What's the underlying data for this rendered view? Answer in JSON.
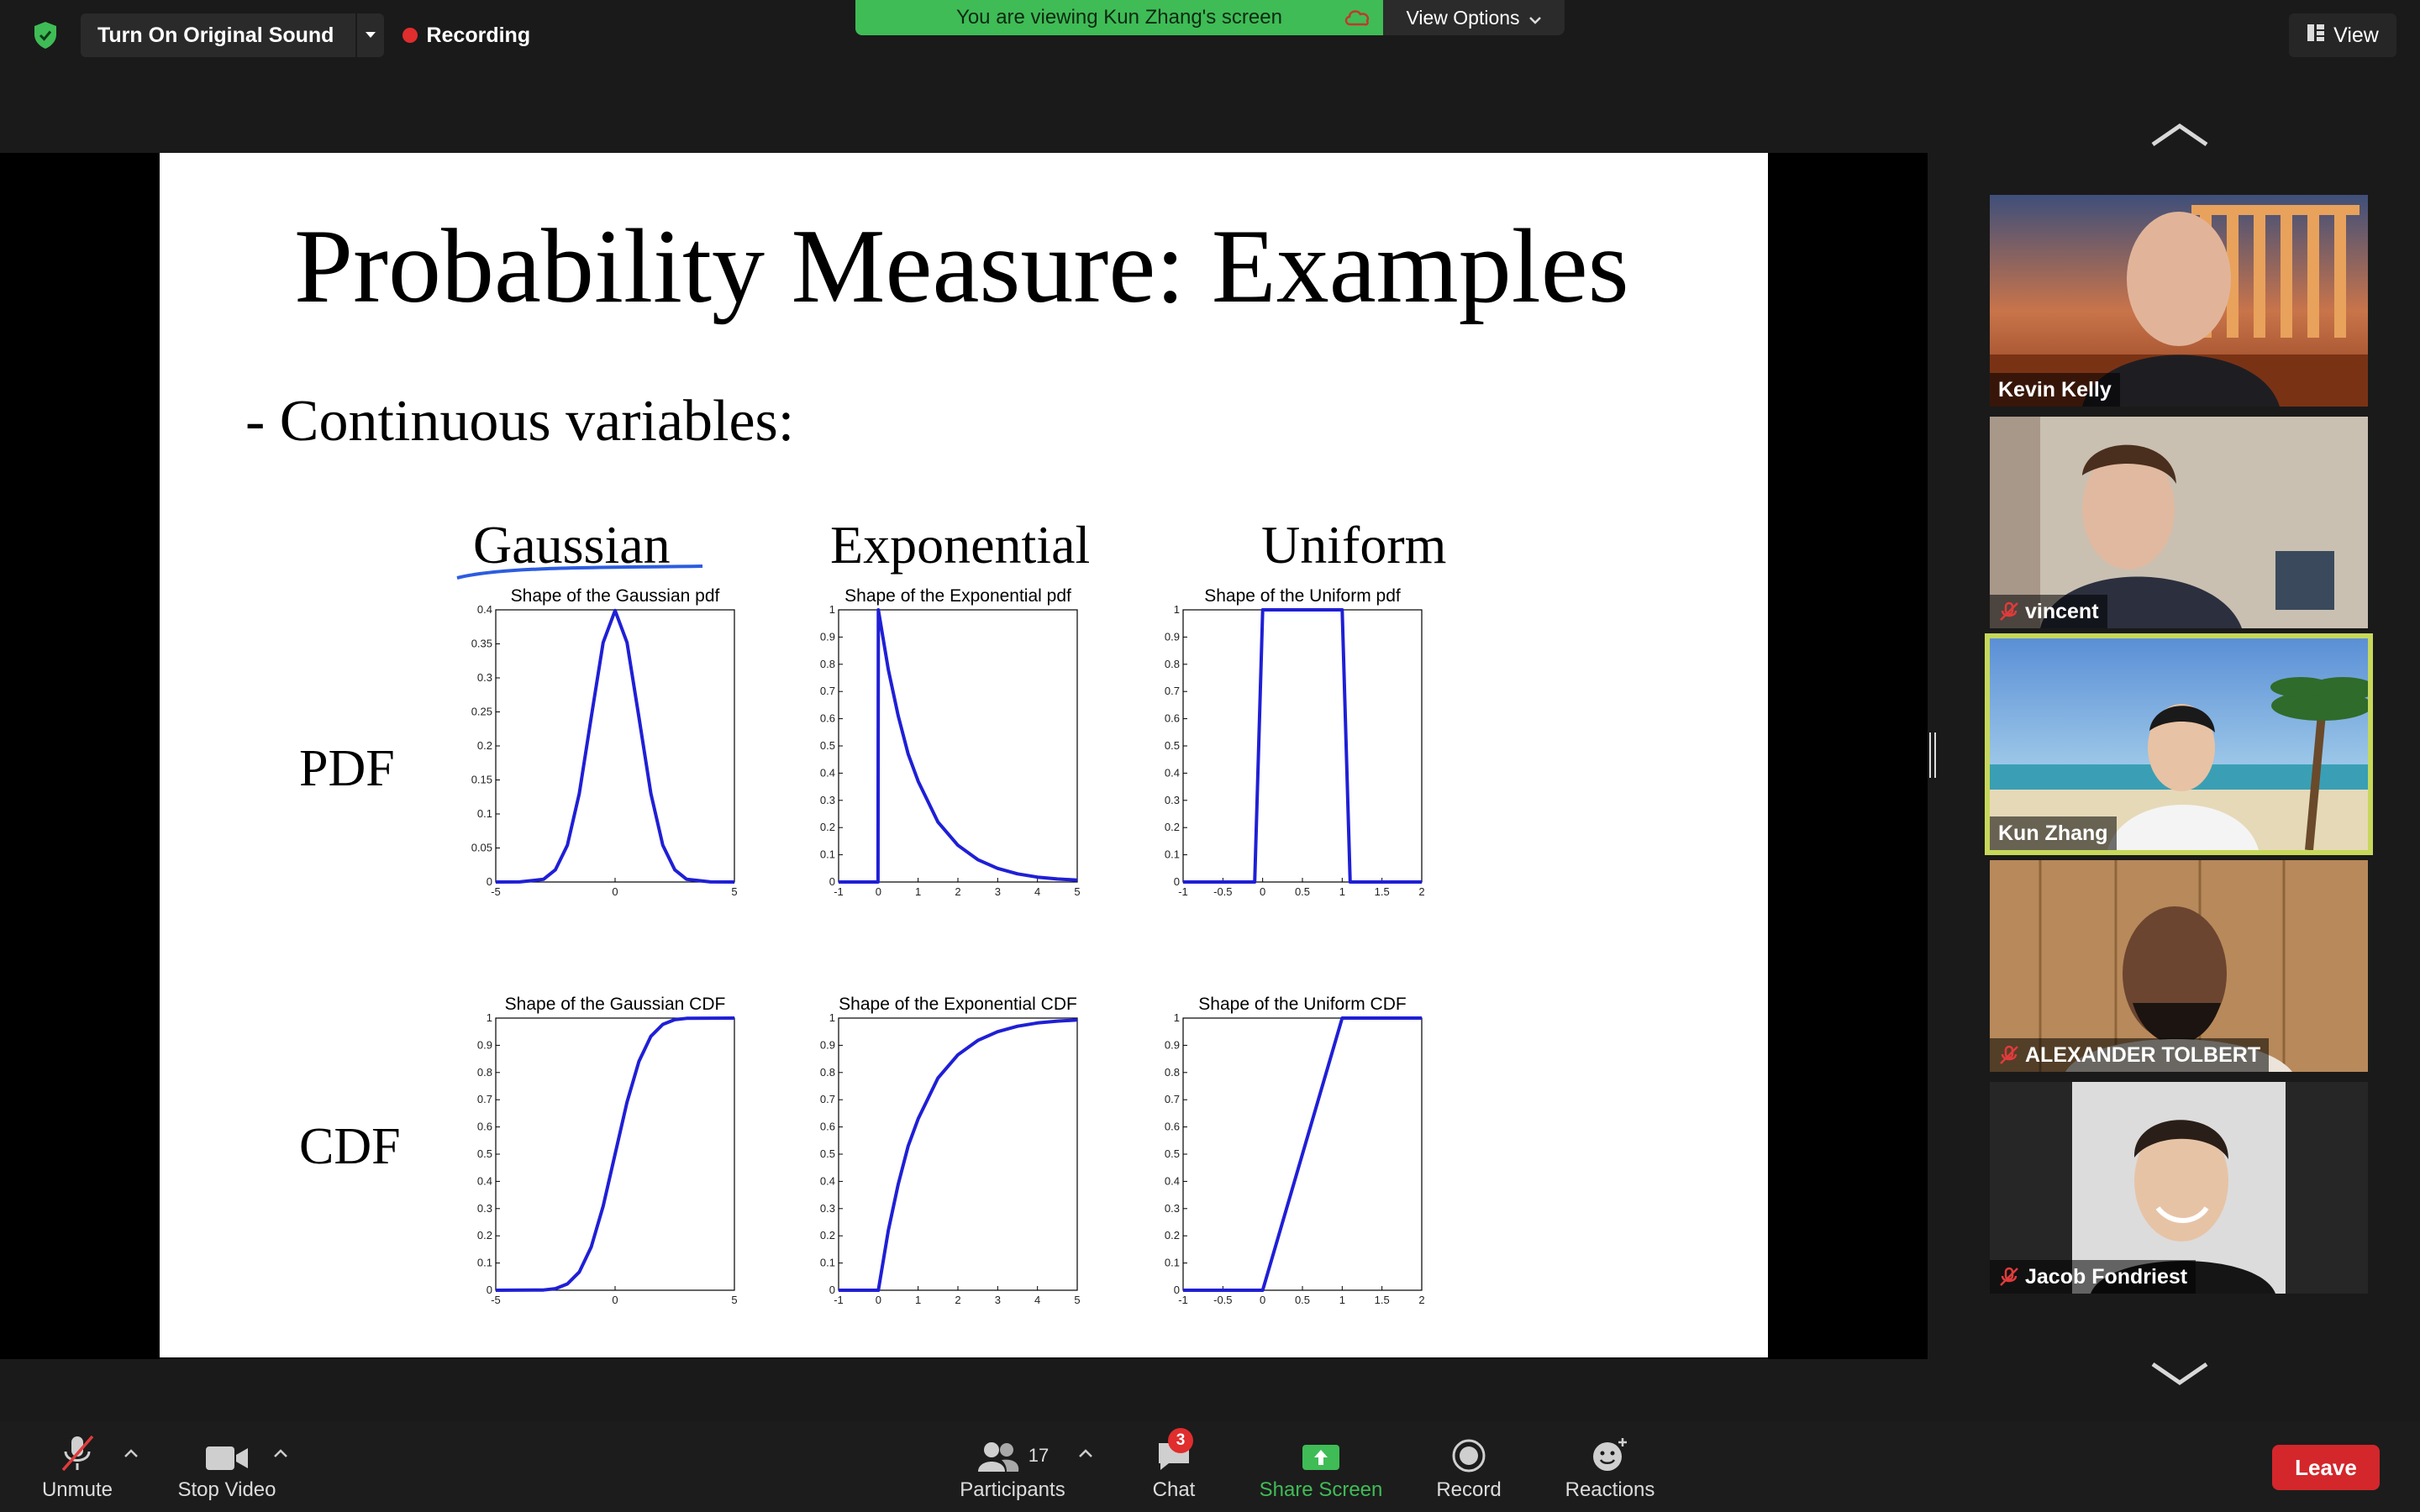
{
  "top_bar": {
    "original_sound_label": "Turn On Original Sound",
    "recording_label": "Recording",
    "banner_text": "You are viewing Kun Zhang's screen",
    "view_options_label": "View Options",
    "view_label": "View"
  },
  "slide": {
    "title": "Probability Measure: Examples",
    "subtitle": "- Continuous variables:",
    "columns": [
      "Gaussian",
      "Exponential",
      "Uniform"
    ],
    "rows": [
      "PDF",
      "CDF"
    ]
  },
  "chart_data": [
    {
      "type": "line",
      "title": "Shape of the Gaussian pdf",
      "xlim": [
        -5,
        5
      ],
      "ylim": [
        0,
        0.4
      ],
      "x_ticks": [
        "-5",
        "0",
        "5"
      ],
      "y_ticks": [
        "0",
        "0.05",
        "0.1",
        "0.15",
        "0.2",
        "0.25",
        "0.3",
        "0.35",
        "0.4"
      ],
      "x": [
        -5,
        -4,
        -3,
        -2.5,
        -2,
        -1.5,
        -1,
        -0.5,
        0,
        0.5,
        1,
        1.5,
        2,
        2.5,
        3,
        4,
        5
      ],
      "y": [
        0,
        0.0001,
        0.004,
        0.018,
        0.054,
        0.13,
        0.242,
        0.352,
        0.399,
        0.352,
        0.242,
        0.13,
        0.054,
        0.018,
        0.004,
        0.0001,
        0
      ]
    },
    {
      "type": "line",
      "title": "Shape of the Exponential pdf",
      "xlim": [
        -1,
        5
      ],
      "ylim": [
        0,
        1
      ],
      "x_ticks": [
        "-1",
        "0",
        "1",
        "2",
        "3",
        "4",
        "5"
      ],
      "y_ticks": [
        "0",
        "0.1",
        "0.2",
        "0.3",
        "0.4",
        "0.5",
        "0.6",
        "0.7",
        "0.8",
        "0.9",
        "1"
      ],
      "x": [
        -1,
        -0.01,
        0,
        0.25,
        0.5,
        0.75,
        1,
        1.5,
        2,
        2.5,
        3,
        3.5,
        4,
        4.5,
        5
      ],
      "y": [
        0,
        0,
        1,
        0.78,
        0.61,
        0.47,
        0.37,
        0.22,
        0.135,
        0.082,
        0.05,
        0.03,
        0.018,
        0.011,
        0.007
      ]
    },
    {
      "type": "line",
      "title": "Shape of the Uniform pdf",
      "xlim": [
        -1,
        2
      ],
      "ylim": [
        0,
        1
      ],
      "x_ticks": [
        "-1",
        "-0.5",
        "0",
        "0.5",
        "1",
        "1.5",
        "2"
      ],
      "y_ticks": [
        "0",
        "0.1",
        "0.2",
        "0.3",
        "0.4",
        "0.5",
        "0.6",
        "0.7",
        "0.8",
        "0.9",
        "1"
      ],
      "x": [
        -1,
        -0.1,
        0,
        1,
        1.1,
        2
      ],
      "y": [
        0,
        0,
        1,
        1,
        0,
        0
      ]
    },
    {
      "type": "line",
      "title": "Shape of the Gaussian CDF",
      "xlim": [
        -5,
        5
      ],
      "ylim": [
        0,
        1
      ],
      "x_ticks": [
        "-5",
        "0",
        "5"
      ],
      "y_ticks": [
        "0",
        "0.1",
        "0.2",
        "0.3",
        "0.4",
        "0.5",
        "0.6",
        "0.7",
        "0.8",
        "0.9",
        "1"
      ],
      "x": [
        -5,
        -3,
        -2.5,
        -2,
        -1.5,
        -1,
        -0.5,
        0,
        0.5,
        1,
        1.5,
        2,
        2.5,
        3,
        5
      ],
      "y": [
        0,
        0.001,
        0.006,
        0.023,
        0.067,
        0.159,
        0.309,
        0.5,
        0.691,
        0.841,
        0.933,
        0.977,
        0.994,
        0.999,
        1
      ]
    },
    {
      "type": "line",
      "title": "Shape of the Exponential CDF",
      "xlim": [
        -1,
        5
      ],
      "ylim": [
        0,
        1
      ],
      "x_ticks": [
        "-1",
        "0",
        "1",
        "2",
        "3",
        "4",
        "5"
      ],
      "y_ticks": [
        "0",
        "0.1",
        "0.2",
        "0.3",
        "0.4",
        "0.5",
        "0.6",
        "0.7",
        "0.8",
        "0.9",
        "1"
      ],
      "x": [
        -1,
        0,
        0.25,
        0.5,
        0.75,
        1,
        1.5,
        2,
        2.5,
        3,
        3.5,
        4,
        4.5,
        5
      ],
      "y": [
        0,
        0,
        0.22,
        0.39,
        0.53,
        0.63,
        0.78,
        0.865,
        0.918,
        0.95,
        0.97,
        0.982,
        0.989,
        0.993
      ]
    },
    {
      "type": "line",
      "title": "Shape of the Uniform CDF",
      "xlim": [
        -1,
        2
      ],
      "ylim": [
        0,
        1
      ],
      "x_ticks": [
        "-1",
        "-0.5",
        "0",
        "0.5",
        "1",
        "1.5",
        "2"
      ],
      "y_ticks": [
        "0",
        "0.1",
        "0.2",
        "0.3",
        "0.4",
        "0.5",
        "0.6",
        "0.7",
        "0.8",
        "0.9",
        "1"
      ],
      "x": [
        -1,
        0,
        1,
        2
      ],
      "y": [
        0,
        0,
        1,
        1
      ]
    }
  ],
  "participants": [
    {
      "name": "Kevin Kelly",
      "muted": false,
      "active": false
    },
    {
      "name": "vincent",
      "muted": true,
      "active": false
    },
    {
      "name": "Kun Zhang",
      "muted": false,
      "active": true
    },
    {
      "name": "ALEXANDER TOLBERT",
      "muted": true,
      "active": false
    },
    {
      "name": "Jacob Fondriest",
      "muted": true,
      "active": false
    }
  ],
  "toolbar": {
    "unmute_label": "Unmute",
    "stop_video_label": "Stop Video",
    "participants_label": "Participants",
    "participants_count": "17",
    "chat_label": "Chat",
    "chat_badge": "3",
    "share_screen_label": "Share Screen",
    "record_label": "Record",
    "reactions_label": "Reactions",
    "leave_label": "Leave"
  },
  "colors": {
    "share_green": "#3fbc56",
    "leave_red": "#d3272b",
    "active_speaker": "#c7d85a",
    "plot_line": "#1f1fd6"
  }
}
